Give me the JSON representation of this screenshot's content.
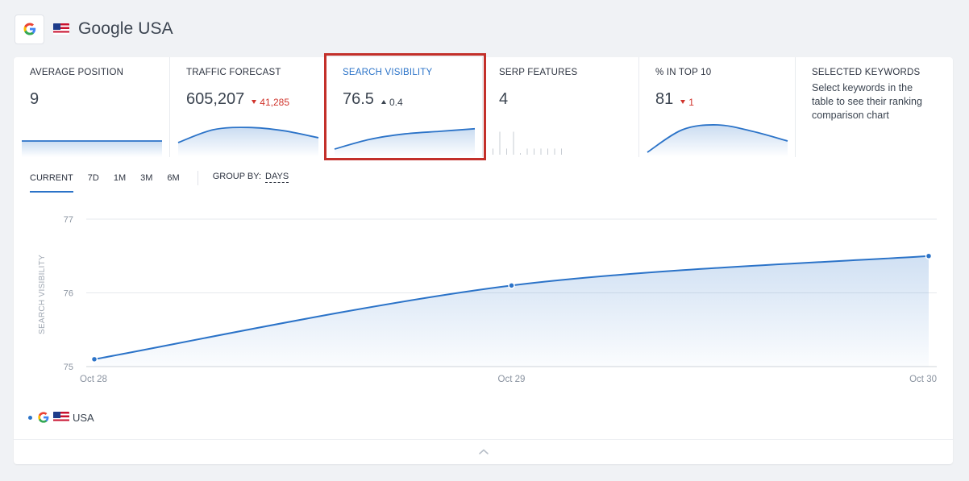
{
  "header": {
    "engine_icon": "google-g-icon",
    "flag_icon": "us-flag-icon",
    "title": "Google USA"
  },
  "metrics": [
    {
      "label": "AVERAGE POSITION",
      "value": "9",
      "delta": "",
      "delta_dir": "",
      "spark": [
        0.4,
        0.4,
        0.4,
        0.4,
        0.4
      ]
    },
    {
      "label": "TRAFFIC FORECAST",
      "value": "605,207",
      "delta": "41,285",
      "delta_dir": "down",
      "spark": [
        0.35,
        0.75,
        0.82,
        0.72,
        0.5
      ]
    },
    {
      "label": "SEARCH VISIBILITY",
      "value": "76.5",
      "delta": "0.4",
      "delta_dir": "up",
      "active": true,
      "spark": [
        0.15,
        0.45,
        0.62,
        0.7,
        0.78
      ]
    },
    {
      "label": "SERP FEATURES",
      "value": "4",
      "delta": "",
      "delta_dir": "",
      "spark": [
        0.2,
        0.75,
        0.2,
        0.75,
        0.05,
        0.2,
        0.2,
        0.2,
        0.2,
        0.2,
        0.2
      ]
    },
    {
      "label": "% IN TOP 10",
      "value": "81",
      "delta": "1",
      "delta_dir": "down",
      "spark": [
        0.05,
        0.75,
        0.9,
        0.7,
        0.4
      ]
    },
    {
      "label": "SELECTED KEYWORDS",
      "desc": "Select keywords in the table to see their ranking comparison chart"
    }
  ],
  "controls": {
    "ranges": [
      "CURRENT",
      "7D",
      "1M",
      "3M",
      "6M"
    ],
    "active_range": "CURRENT",
    "group_by_label": "GROUP BY:",
    "group_by_value": "DAYS"
  },
  "chart_data": {
    "type": "area",
    "ylabel": "SEARCH VISIBILITY",
    "ylim": [
      75,
      77
    ],
    "yticks": [
      "77",
      "76",
      "75"
    ],
    "x": [
      "Oct 28",
      "Oct 29",
      "Oct 30"
    ],
    "series": [
      {
        "name": "USA",
        "values": [
          75.1,
          76.1,
          76.5
        ]
      }
    ],
    "grid": true,
    "line_color": "#2b73c8"
  },
  "legend": {
    "label": "USA"
  },
  "colors": {
    "accent": "#2b73c8",
    "negative": "#d0342c",
    "highlight": "#c3302a"
  },
  "footer": {
    "toggle_icon": "chevron-up-icon"
  }
}
